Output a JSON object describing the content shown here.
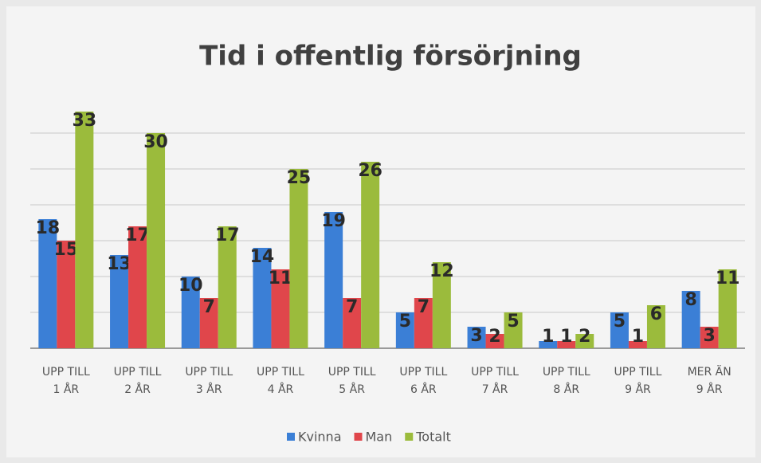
{
  "chart_data": {
    "type": "bar",
    "title": "Tid i offentlig försörjning",
    "categories": [
      "UPP TILL 1 ÅR",
      "UPP TILL 2 ÅR",
      "UPP TILL 3 ÅR",
      "UPP TILL 4 ÅR",
      "UPP TILL 5 ÅR",
      "UPP TILL 6 ÅR",
      "UPP TILL 7 ÅR",
      "UPP TILL 8 ÅR",
      "UPP TILL 9 ÅR",
      "MER ÄN 9 ÅR"
    ],
    "series": [
      {
        "name": "Kvinna",
        "color": "#3b7fd6",
        "values": [
          18,
          13,
          10,
          14,
          19,
          5,
          3,
          1,
          5,
          8
        ]
      },
      {
        "name": "Man",
        "color": "#e0464b",
        "values": [
          15,
          17,
          7,
          11,
          7,
          7,
          2,
          1,
          1,
          3
        ]
      },
      {
        "name": "Totalt",
        "color": "#9bbb3c",
        "values": [
          33,
          30,
          17,
          25,
          26,
          12,
          5,
          2,
          6,
          11
        ]
      }
    ],
    "ylim": [
      0,
      35
    ],
    "yticks": [
      0,
      5,
      10,
      15,
      20,
      25,
      30
    ],
    "grid": true,
    "legend": "bottom"
  }
}
